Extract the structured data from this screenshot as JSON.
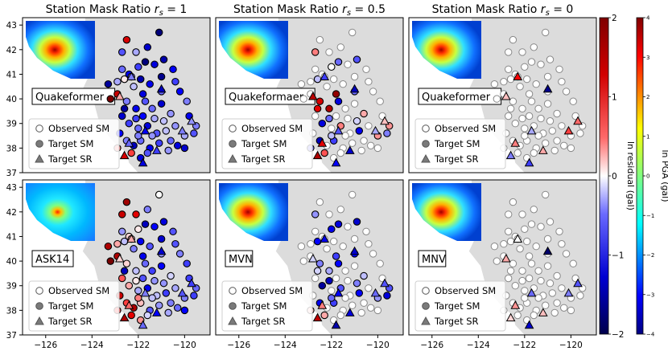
{
  "chart_data": {
    "type": "scatter",
    "layout": "2x3 grid of map panels with shared axes",
    "column_titles": [
      {
        "prefix": "Station Mask Ratio ",
        "var": "r",
        "sub": "s",
        "suffix": " = 1"
      },
      {
        "prefix": "Station Mask Ratio ",
        "var": "r",
        "sub": "s",
        "suffix": " = 0.5"
      },
      {
        "prefix": "Station Mask Ratio ",
        "var": "r",
        "sub": "s",
        "suffix": " = 0"
      }
    ],
    "panel_labels": [
      [
        "Quakeformer",
        "Quakeformaer",
        "Quakeformer"
      ],
      [
        "ASK14",
        "MVN",
        "MNV"
      ]
    ],
    "x_ticks": [
      -126,
      -124,
      -122,
      -120
    ],
    "x_tick_labels": [
      "−126",
      "−124",
      "−122",
      "−120"
    ],
    "y_ticks": [
      37,
      38,
      39,
      40,
      41,
      42,
      43
    ],
    "y_tick_labels": [
      "37",
      "38",
      "39",
      "40",
      "41",
      "42",
      "43"
    ],
    "xlim": [
      -127,
      -118.9
    ],
    "ylim": [
      37,
      43.3
    ],
    "legend": [
      "Observed SM",
      "Target SM",
      "Target SR"
    ],
    "colorbars": [
      {
        "label": "ln residual (gal)",
        "range": [
          -2,
          2
        ],
        "ticks": [
          2,
          1,
          0,
          -1,
          -2
        ],
        "tick_labels": [
          "2",
          "1",
          "0",
          "−1",
          "−2"
        ],
        "cmap": "seismic"
      },
      {
        "label": "ln PGA (gal)",
        "range": [
          -4,
          4
        ],
        "ticks": [
          4,
          3,
          2,
          1,
          0,
          -1,
          -2,
          -3,
          -4
        ],
        "tick_labels": [
          "4",
          "3",
          "2",
          "1",
          "0",
          "−1",
          "−2",
          "−3",
          "−4"
        ],
        "cmap": "jet"
      }
    ],
    "stations": [
      [
        -123.2,
        40.0
      ],
      [
        -122.7,
        41.9
      ],
      [
        -122.5,
        42.4
      ],
      [
        -122.1,
        41.9
      ],
      [
        -121.6,
        42.1
      ],
      [
        -121.1,
        42.7
      ],
      [
        -123.3,
        40.6
      ],
      [
        -122.9,
        40.7
      ],
      [
        -122.6,
        40.8
      ],
      [
        -122.2,
        40.5
      ],
      [
        -121.9,
        40.8
      ],
      [
        -121.5,
        40.6
      ],
      [
        -121.0,
        40.9
      ],
      [
        -122.7,
        41.2
      ],
      [
        -122.4,
        41.0
      ],
      [
        -122.0,
        41.3
      ],
      [
        -121.7,
        41.5
      ],
      [
        -121.3,
        41.4
      ],
      [
        -120.9,
        41.6
      ],
      [
        -120.5,
        41.2
      ],
      [
        -122.9,
        40.2
      ],
      [
        -122.5,
        39.9
      ],
      [
        -122.1,
        39.6
      ],
      [
        -121.7,
        39.9
      ],
      [
        -121.4,
        39.6
      ],
      [
        -121.0,
        39.8
      ],
      [
        -120.6,
        39.4
      ],
      [
        -120.2,
        40.3
      ],
      [
        -119.9,
        39.9
      ],
      [
        -122.7,
        39.3
      ],
      [
        -122.4,
        39.0
      ],
      [
        -122.0,
        38.8
      ],
      [
        -121.6,
        38.9
      ],
      [
        -121.2,
        38.6
      ],
      [
        -120.8,
        38.7
      ],
      [
        -120.4,
        38.9
      ],
      [
        -120.0,
        38.5
      ],
      [
        -119.6,
        38.6
      ],
      [
        -122.8,
        38.6
      ],
      [
        -122.5,
        38.3
      ],
      [
        -122.2,
        38.1
      ],
      [
        -121.9,
        38.3
      ],
      [
        -121.5,
        38.0
      ],
      [
        -121.1,
        38.2
      ],
      [
        -120.7,
        37.9
      ],
      [
        -122.3,
        37.8
      ],
      [
        -121.9,
        37.6
      ],
      [
        -121.6,
        37.8
      ],
      [
        -122.0,
        38.5
      ],
      [
        -121.3,
        39.2
      ],
      [
        -120.6,
        38.3
      ],
      [
        -122.6,
        39.6
      ],
      [
        -121.8,
        39.3
      ],
      [
        -120.9,
        39.1
      ],
      [
        -120.3,
        38.1
      ],
      [
        -119.8,
        39.3
      ],
      [
        -119.5,
        38.9
      ],
      [
        -122.1,
        39.2
      ],
      [
        -121.4,
        38.5
      ],
      [
        -120.0,
        38.0
      ],
      [
        -122.9,
        38.0
      ],
      [
        -121.0,
        40.3
      ],
      [
        -120.4,
        40.7
      ],
      [
        -121.8,
        40.2
      ],
      [
        -122.3,
        40.9
      ]
    ],
    "targets_sr": [
      [
        -122.8,
        40.1
      ],
      [
        -122.3,
        40.9
      ],
      [
        -121.0,
        40.4
      ],
      [
        -122.4,
        38.2
      ],
      [
        -121.7,
        38.7
      ],
      [
        -120.1,
        38.7
      ],
      [
        -121.2,
        37.9
      ],
      [
        -122.6,
        37.7
      ],
      [
        -119.7,
        39.1
      ],
      [
        -121.8,
        37.4
      ]
    ],
    "panels": [
      {
        "row": 0,
        "col": 0,
        "stations_residual": [
          2.0,
          -0.8,
          1.3,
          -0.4,
          -1.3,
          -1.8,
          -1.6,
          -0.4,
          0.1,
          -0.3,
          -1.5,
          -1.1,
          -1.7,
          -0.7,
          -1.1,
          -0.9,
          -1.8,
          -1.2,
          -1.5,
          -1.0,
          1.4,
          -0.6,
          -1.1,
          -0.8,
          -0.7,
          -1.3,
          -0.5,
          -1.0,
          -0.6,
          -1.3,
          -0.9,
          -0.7,
          -1.2,
          -0.8,
          -0.3,
          -0.5,
          -0.4,
          -0.8,
          -1.0,
          -0.6,
          -1.4,
          -0.7,
          -1.1,
          -0.9,
          -0.5,
          0.9,
          -1.2,
          -0.8,
          -0.6,
          -0.4,
          -0.7,
          -1.6,
          -1.0,
          -0.3,
          -1.2,
          -1.1,
          -0.6,
          -0.9,
          -0.5,
          -1.3,
          0.6,
          -0.7,
          -0.9,
          -1.2,
          -0.6
        ],
        "targets_residual": [
          0.4,
          -0.6,
          -1.4,
          -0.7,
          -1.1,
          -0.6,
          -0.9,
          1.3,
          -0.5,
          -1.2
        ]
      },
      {
        "row": 0,
        "col": 1,
        "stations_residual": [
          null,
          0.6,
          null,
          null,
          null,
          null,
          null,
          null,
          -0.3,
          null,
          null,
          null,
          null,
          null,
          null,
          0.0,
          -0.7,
          null,
          -0.8,
          null,
          null,
          1.3,
          1.6,
          -1.2,
          null,
          null,
          0.4,
          null,
          null,
          null,
          -1.2,
          null,
          0.6,
          null,
          -1.1,
          null,
          0.5,
          -0.6,
          null,
          -1.4,
          null,
          -0.9,
          null,
          null,
          null,
          0.8,
          null,
          null,
          -0.3,
          null,
          null,
          1.2,
          null,
          -0.2,
          null,
          null,
          0.5,
          -0.7,
          null,
          null,
          -0.6,
          -0.7,
          null,
          1.8,
          null
        ],
        "targets_residual": [
          1.5,
          -0.9,
          -1.4,
          1.2,
          -0.8,
          -0.4,
          -1.3,
          1.6,
          0.3,
          -1.0
        ]
      },
      {
        "row": 0,
        "col": 2,
        "stations_residual": [],
        "targets_residual": [
          0.3,
          1.0,
          -1.7,
          0.6,
          -0.4,
          0.9,
          0.4,
          -0.6,
          0.7,
          -0.9
        ]
      },
      {
        "row": 1,
        "col": 0,
        "stations_residual": [
          2.0,
          1.4,
          1.7,
          1.2,
          -0.6,
          0.0,
          1.6,
          0.4,
          -0.3,
          -0.6,
          -1.1,
          -0.8,
          -1.3,
          -0.5,
          0.2,
          0.1,
          -1.4,
          -1.0,
          -1.2,
          -0.8,
          1.6,
          0.2,
          -0.3,
          -0.7,
          -0.9,
          -1.0,
          -0.2,
          -0.6,
          -0.9,
          0.8,
          0.4,
          -0.4,
          -1.1,
          -0.3,
          -0.9,
          -0.4,
          -0.6,
          -0.9,
          1.4,
          0.9,
          1.6,
          0.3,
          -0.8,
          -0.5,
          -0.4,
          1.2,
          0.5,
          -0.2,
          0.6,
          -0.5,
          -0.6,
          -1.4,
          -0.8,
          -0.5,
          -0.7,
          -0.9,
          -0.7,
          0.1,
          -0.3,
          -1.0,
          0.9,
          -0.5,
          -0.8,
          -1.1,
          0.3
        ],
        "targets_residual": [
          0.2,
          0.4,
          -1.3,
          0.7,
          -0.6,
          -0.8,
          -1.0,
          1.6,
          -0.9,
          -0.7
        ]
      },
      {
        "row": 1,
        "col": 1,
        "stations_residual": [
          null,
          -0.5,
          null,
          null,
          null,
          null,
          null,
          null,
          -1.0,
          null,
          null,
          null,
          null,
          null,
          null,
          -1.1,
          -1.2,
          null,
          -1.3,
          null,
          null,
          -0.6,
          -0.4,
          -1.0,
          null,
          null,
          -0.3,
          null,
          null,
          null,
          -1.6,
          null,
          -0.8,
          null,
          -1.0,
          null,
          -0.5,
          -1.2,
          null,
          -1.1,
          null,
          -0.9,
          null,
          null,
          null,
          0.4,
          null,
          null,
          -0.7,
          null,
          null,
          -0.2,
          null,
          -0.6,
          null,
          null,
          -0.8,
          -1.4,
          null,
          null,
          0.3,
          -1.0,
          null,
          -0.9,
          null
        ],
        "targets_residual": [
          -0.2,
          -1.1,
          -1.3,
          0.6,
          -1.0,
          -0.7,
          -1.2,
          1.5,
          -0.8,
          -1.5
        ]
      },
      {
        "row": 1,
        "col": 2,
        "stations_residual": [],
        "targets_residual": [
          0.4,
          0.0,
          -1.9,
          0.5,
          -0.7,
          -0.6,
          0.3,
          0.2,
          -0.8,
          -1.3
        ]
      }
    ]
  }
}
